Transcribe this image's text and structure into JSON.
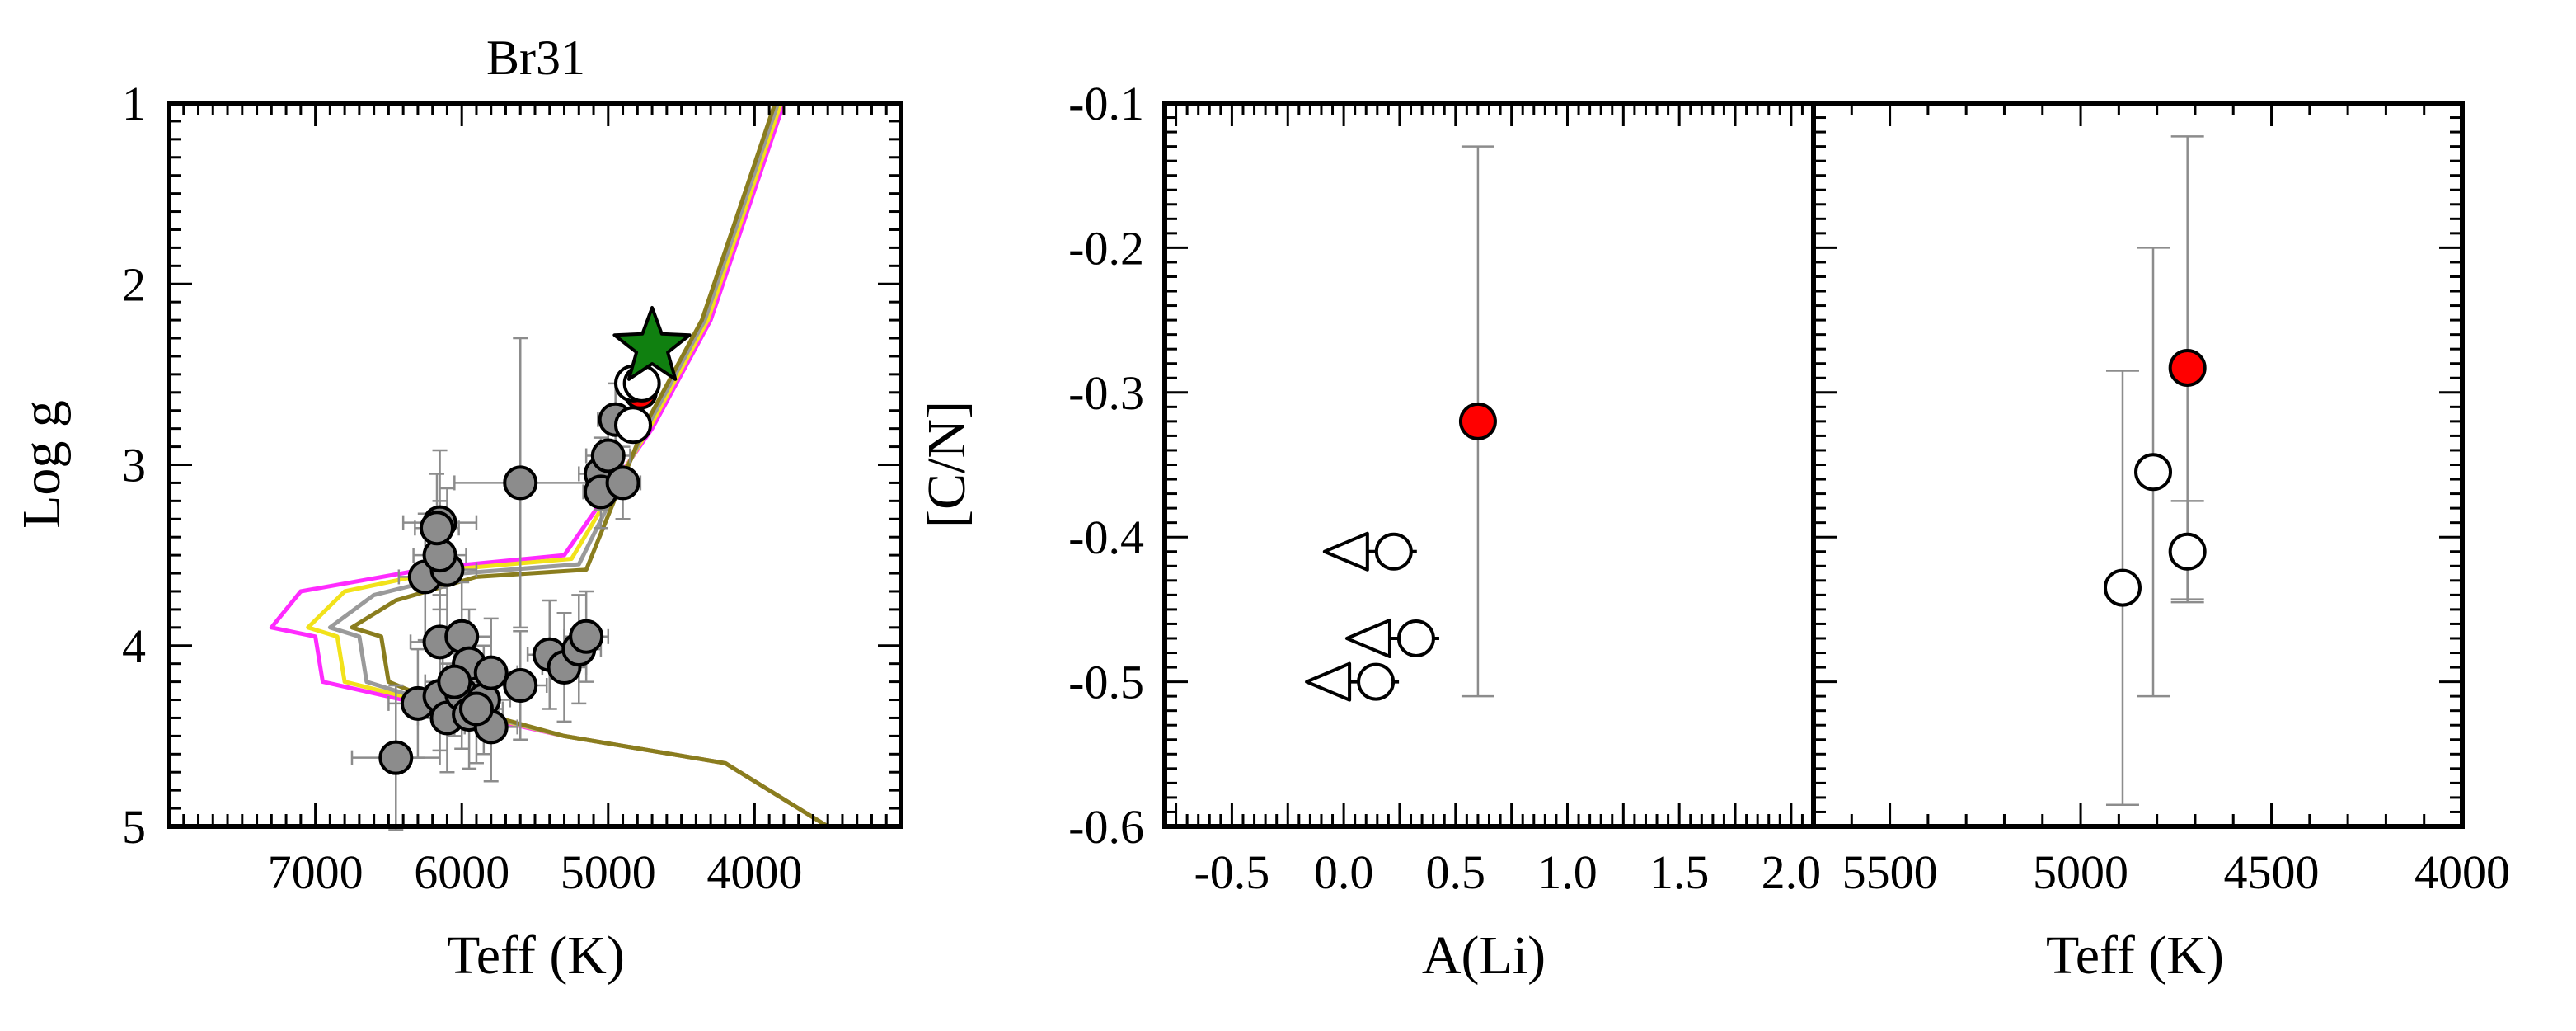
{
  "colors": {
    "frame": "#000000",
    "track_olive": "#8a7d1e",
    "track_gray": "#9a9a9a",
    "track_yellow": "#f2e21a",
    "track_magenta": "#ff2bff",
    "member": "#8c8c8c",
    "giant_open": "#ffffff",
    "target_red": "#ff0000",
    "star_green": "#108010",
    "errbar": "#8c8c8c"
  },
  "chart_data": [
    {
      "type": "scatter",
      "title": "Br31",
      "xlabel": "Teff (K)",
      "ylabel": "Log g",
      "xlim": [
        8000,
        3000
      ],
      "ylim": [
        5,
        1
      ],
      "x_inverted": true,
      "y_inverted": true,
      "xticks": [
        7000,
        6000,
        5000,
        4000
      ],
      "yticks": [
        1,
        2,
        3,
        4,
        5
      ],
      "isochrones": [
        {
          "color": "magenta",
          "points": [
            [
              3800,
              1.0
            ],
            [
              4300,
              2.2
            ],
            [
              4700,
              2.8
            ],
            [
              5300,
              3.5
            ],
            [
              6200,
              3.57
            ],
            [
              7100,
              3.7
            ],
            [
              7300,
              3.9
            ],
            [
              7000,
              3.95
            ],
            [
              6950,
              4.2
            ],
            [
              6400,
              4.3
            ],
            [
              5300,
              4.5
            ],
            [
              4200,
              4.65
            ],
            [
              3500,
              5.0
            ]
          ]
        },
        {
          "color": "yellow",
          "points": [
            [
              3820,
              1.0
            ],
            [
              4320,
              2.2
            ],
            [
              4720,
              2.8
            ],
            [
              5250,
              3.52
            ],
            [
              6100,
              3.58
            ],
            [
              6800,
              3.7
            ],
            [
              7050,
              3.9
            ],
            [
              6850,
              3.95
            ],
            [
              6800,
              4.2
            ],
            [
              6300,
              4.3
            ],
            [
              5300,
              4.5
            ],
            [
              4200,
              4.65
            ],
            [
              3500,
              5.0
            ]
          ]
        },
        {
          "color": "gray",
          "points": [
            [
              3840,
              1.0
            ],
            [
              4340,
              2.2
            ],
            [
              4740,
              2.8
            ],
            [
              5200,
              3.55
            ],
            [
              6000,
              3.6
            ],
            [
              6600,
              3.72
            ],
            [
              6900,
              3.9
            ],
            [
              6700,
              3.95
            ],
            [
              6650,
              4.2
            ],
            [
              6250,
              4.3
            ],
            [
              5300,
              4.5
            ],
            [
              4200,
              4.65
            ],
            [
              3500,
              5.0
            ]
          ]
        },
        {
          "color": "olive",
          "points": [
            [
              3860,
              1.0
            ],
            [
              4360,
              2.2
            ],
            [
              4760,
              2.8
            ],
            [
              5150,
              3.58
            ],
            [
              5900,
              3.62
            ],
            [
              6450,
              3.75
            ],
            [
              6750,
              3.9
            ],
            [
              6550,
              3.95
            ],
            [
              6500,
              4.2
            ],
            [
              6200,
              4.3
            ],
            [
              5300,
              4.5
            ],
            [
              4200,
              4.65
            ],
            [
              3500,
              5.0
            ]
          ]
        }
      ],
      "members": [
        {
          "teff": 6250,
          "logg": 3.62,
          "eteff": 180,
          "elogg": 0.35
        },
        {
          "teff": 6150,
          "logg": 3.32,
          "eteff": 250,
          "elogg": 0.4
        },
        {
          "teff": 6100,
          "logg": 3.58,
          "eteff": 200,
          "elogg": 0.45
        },
        {
          "teff": 6150,
          "logg": 3.5,
          "eteff": 180,
          "elogg": 0.3
        },
        {
          "teff": 6170,
          "logg": 3.35,
          "eteff": 150,
          "elogg": 0.3
        },
        {
          "teff": 5600,
          "logg": 3.1,
          "eteff": 450,
          "elogg": 0.8
        },
        {
          "teff": 5050,
          "logg": 3.05,
          "eteff": 150,
          "elogg": 0.2
        },
        {
          "teff": 5000,
          "logg": 2.95,
          "eteff": 150,
          "elogg": 0.2
        },
        {
          "teff": 4950,
          "logg": 2.75,
          "eteff": 120,
          "elogg": 0.2
        },
        {
          "teff": 5050,
          "logg": 3.15,
          "eteff": 120,
          "elogg": 0.2
        },
        {
          "teff": 4900,
          "logg": 3.1,
          "eteff": 120,
          "elogg": 0.2
        },
        {
          "teff": 6150,
          "logg": 3.98,
          "eteff": 200,
          "elogg": 0.3
        },
        {
          "teff": 6000,
          "logg": 3.95,
          "eteff": 200,
          "elogg": 0.3
        },
        {
          "teff": 5950,
          "logg": 4.1,
          "eteff": 180,
          "elogg": 0.3
        },
        {
          "teff": 6300,
          "logg": 4.32,
          "eteff": 200,
          "elogg": 0.3
        },
        {
          "teff": 6150,
          "logg": 4.28,
          "eteff": 200,
          "elogg": 0.3
        },
        {
          "teff": 6100,
          "logg": 4.4,
          "eteff": 200,
          "elogg": 0.3
        },
        {
          "teff": 6000,
          "logg": 4.27,
          "eteff": 200,
          "elogg": 0.3
        },
        {
          "teff": 6050,
          "logg": 4.2,
          "eteff": 200,
          "elogg": 0.3
        },
        {
          "teff": 5950,
          "logg": 4.38,
          "eteff": 200,
          "elogg": 0.3
        },
        {
          "teff": 5850,
          "logg": 4.3,
          "eteff": 180,
          "elogg": 0.3
        },
        {
          "teff": 5800,
          "logg": 4.45,
          "eteff": 180,
          "elogg": 0.3
        },
        {
          "teff": 5800,
          "logg": 4.15,
          "eteff": 180,
          "elogg": 0.3
        },
        {
          "teff": 5900,
          "logg": 4.35,
          "eteff": 180,
          "elogg": 0.3
        },
        {
          "teff": 5600,
          "logg": 4.22,
          "eteff": 180,
          "elogg": 0.3
        },
        {
          "teff": 5400,
          "logg": 4.05,
          "eteff": 150,
          "elogg": 0.3
        },
        {
          "teff": 5300,
          "logg": 4.12,
          "eteff": 150,
          "elogg": 0.3
        },
        {
          "teff": 5200,
          "logg": 4.02,
          "eteff": 150,
          "elogg": 0.3
        },
        {
          "teff": 5150,
          "logg": 3.95,
          "eteff": 150,
          "elogg": 0.25
        },
        {
          "teff": 6450,
          "logg": 4.62,
          "eteff": 300,
          "elogg": 0.4
        }
      ],
      "giants": [
        {
          "teff": 4830,
          "logg": 2.55
        },
        {
          "teff": 4770,
          "logg": 2.55
        },
        {
          "teff": 4830,
          "logg": 2.78
        }
      ],
      "target": {
        "teff": 4780,
        "logg": 2.6
      },
      "star": {
        "teff": 4700,
        "logg": 2.35
      }
    },
    {
      "type": "scatter",
      "xlabel": "A(Li)",
      "ylabel": "[C/N]",
      "xlim": [
        -0.8,
        2.1
      ],
      "ylim": [
        -0.6,
        -0.1
      ],
      "xticks": [
        -0.5,
        0.0,
        0.5,
        1.0,
        1.5,
        2.0
      ],
      "xtick_labels": [
        "-0.5",
        "0.0",
        "0.5",
        "1.0",
        "1.5",
        "2.0"
      ],
      "yticks": [
        -0.1,
        -0.2,
        -0.3,
        -0.4,
        -0.5,
        -0.6
      ],
      "ytick_labels": [
        "-0.1",
        "-0.2",
        "-0.3",
        "-0.4",
        "-0.5",
        "-0.6"
      ],
      "upper_limits": [
        {
          "ali": 0.15,
          "cn": -0.41
        },
        {
          "ali": 0.25,
          "cn": -0.47
        },
        {
          "ali": 0.07,
          "cn": -0.5
        }
      ],
      "target": {
        "ali": 0.6,
        "cn": -0.32,
        "err": 0.19
      }
    },
    {
      "type": "scatter",
      "xlabel": "Teff (K)",
      "xlim": [
        5700,
        4000
      ],
      "ylim": [
        -0.6,
        -0.1
      ],
      "x_inverted": true,
      "xticks": [
        5500,
        5000,
        4500,
        4000
      ],
      "open_points": [
        {
          "teff": 4890,
          "cn": -0.435,
          "err": 0.15
        },
        {
          "teff": 4810,
          "cn": -0.355,
          "err": 0.155
        },
        {
          "teff": 4720,
          "cn": -0.41,
          "err": 0.035
        }
      ],
      "target": {
        "teff": 4720,
        "cn": -0.283,
        "err": 0.16
      }
    }
  ]
}
